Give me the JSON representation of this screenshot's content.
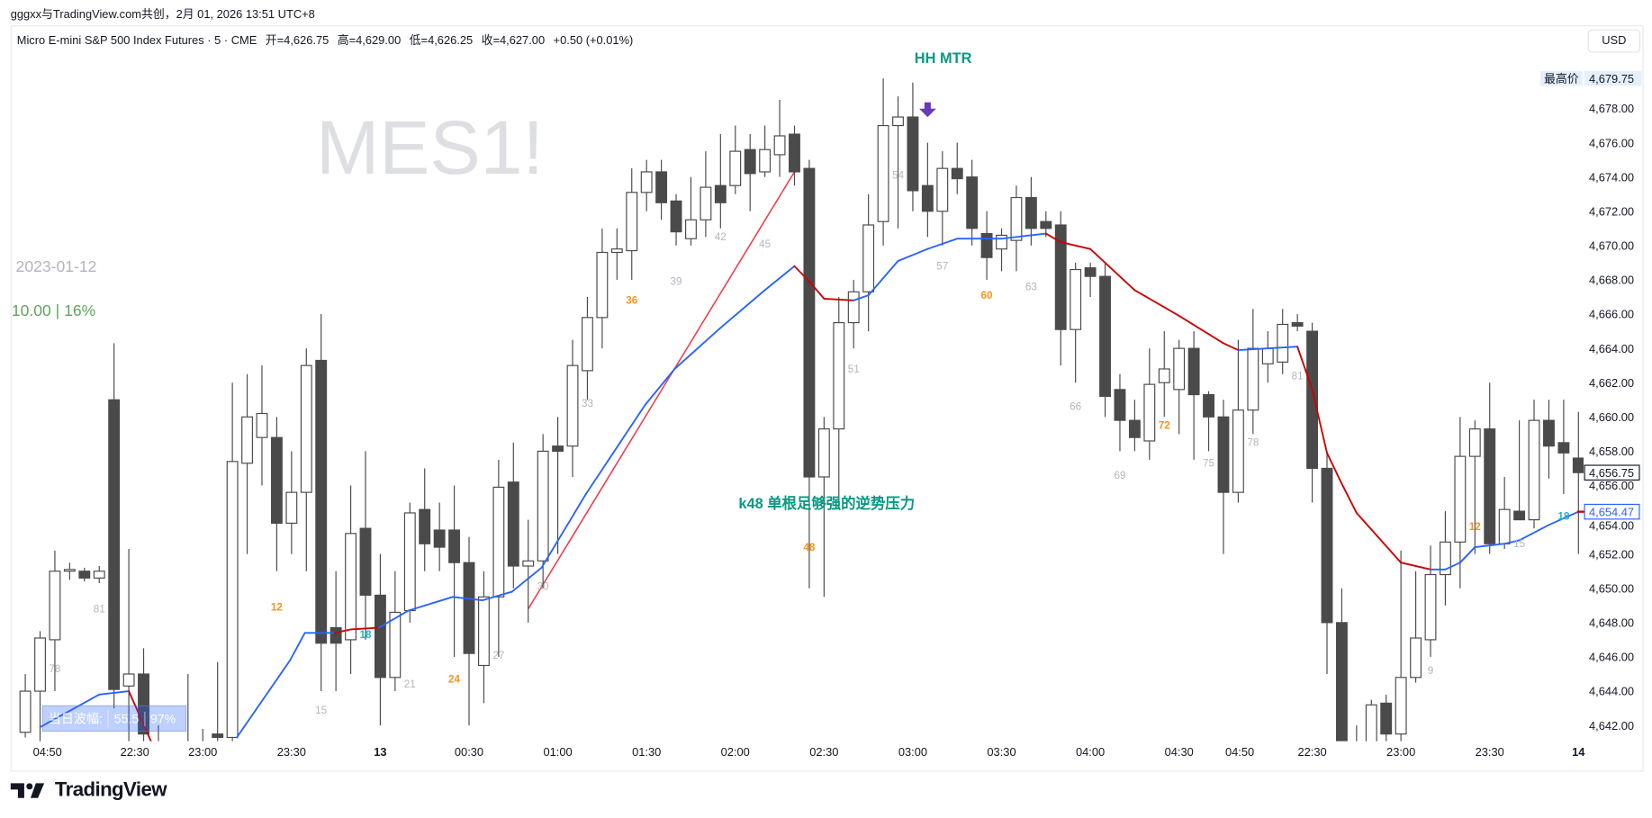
{
  "header": {
    "credit": "gggxx与TradingView.com共创，2月 01, 2026 13:51 UTC+8"
  },
  "legend": {
    "symbol": "Micro E-mini S&P 500 Index Futures · 5 · CME",
    "open": "开=4,626.75",
    "high": "高=4,629.00",
    "low": "低=4,626.25",
    "close": "收=4,627.00",
    "change": "+0.50 (+0.01%)"
  },
  "currency_button": "USD",
  "watermark": "MES1!",
  "annotations": {
    "date": "2023-01-12",
    "stat": "10.00 | 16%",
    "hh_mtr": "HH MTR",
    "k48": "k48 单根足够强的逆势压力",
    "range": {
      "label": "当日波幅:",
      "value": "55.5",
      "pct": "97%"
    }
  },
  "logo": "TradingView",
  "colors": {
    "up_body": "#ffffff",
    "down_body": "#4a4a4a",
    "ma_up": "#2962ff",
    "ma_down": "#cc0000",
    "trendline": "#f23645",
    "label_gray": "#b2b5be",
    "label_orange": "#f7931a",
    "label_teal": "#22b7c9",
    "arrow": "#673ab7"
  },
  "chart_data": {
    "type": "candlestick",
    "ylim": [
      4640.5,
      4680.5
    ],
    "price_ticks": [
      "4,678.00",
      "4,676.00",
      "4,674.00",
      "4,672.00",
      "4,670.00",
      "4,668.00",
      "4,666.00",
      "4,664.00",
      "4,662.00",
      "4,660.00",
      "4,658.00",
      "4,656.00",
      "4,654.00",
      "4,652.00",
      "4,650.00",
      "4,648.00",
      "4,646.00",
      "4,644.00",
      "4,642.00"
    ],
    "price_tick_values": [
      4678,
      4676,
      4674,
      4672,
      4670,
      4668,
      4666,
      4664,
      4662,
      4660,
      4658,
      4656,
      4654,
      4652,
      4650,
      4648,
      4646,
      4644,
      4642
    ],
    "price_tags": [
      {
        "label": "最高价",
        "text": "4,679.75",
        "value": 4679.75,
        "style": "high"
      },
      {
        "text": "4,656.75",
        "value": 4656.75,
        "style": "last"
      },
      {
        "text": "4,654.47",
        "value": 4654.47,
        "style": "ma"
      }
    ],
    "time_labels": [
      [
        "04:50",
        1.5
      ],
      [
        "22:30",
        7.4
      ],
      [
        "23:00",
        12
      ],
      [
        "23:30",
        18
      ],
      [
        "13",
        24
      ],
      [
        "00:30",
        30
      ],
      [
        "01:00",
        36
      ],
      [
        "01:30",
        42
      ],
      [
        "02:00",
        48
      ],
      [
        "02:30",
        54
      ],
      [
        "03:00",
        60
      ],
      [
        "03:30",
        66
      ],
      [
        "04:00",
        72
      ],
      [
        "04:30",
        78
      ],
      [
        "04:50",
        82.1
      ],
      [
        "22:30",
        87
      ],
      [
        "23:00",
        93
      ],
      [
        "23:30",
        99
      ],
      [
        "14",
        105
      ]
    ],
    "candles": [
      [
        0,
        4641.6,
        4645,
        4641.3,
        4644
      ],
      [
        1,
        4644,
        4647.5,
        4641,
        4647.1
      ],
      [
        2,
        4647,
        4652.2,
        4644,
        4651
      ],
      [
        3,
        4651,
        4651.5,
        4650.5,
        4651.1
      ],
      [
        4,
        4651,
        4651.2,
        4650.4,
        4650.6
      ],
      [
        5,
        4650.6,
        4651.3,
        4650.3,
        4651
      ],
      [
        6,
        4661,
        4664.3,
        4643,
        4644.1
      ],
      [
        7,
        4644.3,
        4652.3,
        4641,
        4645
      ],
      [
        8,
        4645,
        4646.5,
        4640,
        4641.5
      ],
      [
        9,
        4641,
        4642,
        4636,
        4637
      ],
      [
        10,
        4637,
        4639,
        4635,
        4638
      ],
      [
        11,
        4638,
        4645,
        4636,
        4639
      ],
      [
        12,
        4639,
        4641.8,
        4638,
        4641
      ],
      [
        13,
        4641.5,
        4645.7,
        4639,
        4641.3
      ],
      [
        14,
        4641.3,
        4662,
        4640,
        4657.4
      ],
      [
        15,
        4657.3,
        4662.5,
        4652,
        4660
      ],
      [
        16,
        4658.8,
        4663,
        4656,
        4660.2
      ],
      [
        17,
        4658.8,
        4660,
        4651,
        4653.8
      ],
      [
        18,
        4653.8,
        4658,
        4652,
        4655.6
      ],
      [
        19,
        4655.6,
        4664,
        4651,
        4663
      ],
      [
        20,
        4663.3,
        4666,
        4644,
        4646.8
      ],
      [
        21,
        4647.7,
        4651,
        4644,
        4646.8
      ],
      [
        22,
        4647,
        4656,
        4645,
        4653.2
      ],
      [
        23,
        4653.5,
        4658,
        4647,
        4649.6
      ],
      [
        24,
        4649.6,
        4652,
        4642,
        4644.8
      ],
      [
        25,
        4644.8,
        4651,
        4644,
        4648.6
      ],
      [
        26,
        4648.7,
        4655,
        4648,
        4654.4
      ],
      [
        27,
        4654.6,
        4657,
        4651,
        4652.6
      ],
      [
        28,
        4653.4,
        4655,
        4651,
        4652.4
      ],
      [
        29,
        4653.4,
        4656,
        4646,
        4651.5
      ],
      [
        30,
        4651.5,
        4653,
        4642,
        4646.2
      ],
      [
        31,
        4645.5,
        4651,
        4643.3,
        4649.5
      ],
      [
        32,
        4649.5,
        4657.5,
        4646,
        4655.9
      ],
      [
        33,
        4656.2,
        4658.5,
        4650,
        4651.3
      ],
      [
        34,
        4651.3,
        4654,
        4648,
        4651.6
      ],
      [
        35,
        4651.6,
        4659,
        4650,
        4658
      ],
      [
        36,
        4658.3,
        4660,
        4652,
        4658
      ],
      [
        37,
        4658.3,
        4664.5,
        4656.5,
        4663
      ],
      [
        38,
        4662.7,
        4667,
        4661,
        4665.8
      ],
      [
        39,
        4665.8,
        4671,
        4664,
        4669.6
      ],
      [
        40,
        4669.6,
        4671,
        4668,
        4669.8
      ],
      [
        41,
        4669.7,
        4674.5,
        4668,
        4673.1
      ],
      [
        42,
        4673.1,
        4675,
        4672,
        4674.3
      ],
      [
        43,
        4674.3,
        4675,
        4671.5,
        4672.5
      ],
      [
        44,
        4672.6,
        4673,
        4670,
        4670.8
      ],
      [
        45,
        4670.4,
        4674,
        4670,
        4671.5
      ],
      [
        46,
        4671.5,
        4675.5,
        4670.5,
        4673.4
      ],
      [
        47,
        4673.5,
        4676.5,
        4671,
        4672.5
      ],
      [
        48,
        4673.5,
        4677,
        4673,
        4675.5
      ],
      [
        49,
        4675.6,
        4676.5,
        4672,
        4674.2
      ],
      [
        50,
        4674.3,
        4677,
        4674,
        4675.6
      ],
      [
        51,
        4675.3,
        4678.5,
        4674,
        4676.4
      ],
      [
        52,
        4676.5,
        4677,
        4673.5,
        4674.3
      ],
      [
        53,
        4674.5,
        4675,
        4650,
        4656.5
      ],
      [
        54,
        4656.5,
        4660,
        4649.5,
        4659.3
      ],
      [
        55,
        4659.3,
        4667,
        4655,
        4665.5
      ],
      [
        56,
        4665.5,
        4668,
        4664,
        4667.3
      ],
      [
        57,
        4667.3,
        4673,
        4665,
        4671.2
      ],
      [
        58,
        4671.4,
        4679.75,
        4670,
        4677
      ],
      [
        59,
        4677,
        4678.7,
        4671,
        4677.5
      ],
      [
        60,
        4677.5,
        4679.5,
        4672,
        4673.2
      ],
      [
        61,
        4673.5,
        4676,
        4670.5,
        4672
      ],
      [
        62,
        4672,
        4675.5,
        4670,
        4674.5
      ],
      [
        63,
        4674.5,
        4676,
        4673,
        4673.9
      ],
      [
        64,
        4674,
        4675,
        4670,
        4671
      ],
      [
        65,
        4670.7,
        4672,
        4668,
        4669.3
      ],
      [
        66,
        4669.8,
        4671,
        4668.5,
        4670.6
      ],
      [
        67,
        4670.3,
        4673.5,
        4668.5,
        4672.8
      ],
      [
        68,
        4672.8,
        4674,
        4670,
        4671
      ],
      [
        69,
        4671.4,
        4672,
        4670.5,
        4671
      ],
      [
        70,
        4671.2,
        4672,
        4663,
        4665.1
      ],
      [
        71,
        4665.1,
        4669,
        4662,
        4668.6
      ],
      [
        72,
        4668.7,
        4669,
        4667,
        4668.2
      ],
      [
        73,
        4668.2,
        4669,
        4660,
        4661.2
      ],
      [
        74,
        4661.6,
        4662.5,
        4658,
        4659.8
      ],
      [
        75,
        4659.8,
        4661,
        4658,
        4658.8
      ],
      [
        76,
        4658.6,
        4664,
        4657.5,
        4661.9
      ],
      [
        77,
        4662,
        4665,
        4660,
        4662.8
      ],
      [
        78,
        4661.6,
        4664.5,
        4659,
        4664
      ],
      [
        79,
        4664,
        4665,
        4657.5,
        4661.3
      ],
      [
        80,
        4661.3,
        4661.5,
        4658,
        4660
      ],
      [
        81,
        4660,
        4661,
        4652,
        4655.6
      ],
      [
        82,
        4655.6,
        4664.5,
        4655,
        4660.4
      ],
      [
        83,
        4660.4,
        4666.3,
        4659,
        4664
      ],
      [
        84,
        4663.1,
        4665,
        4662,
        4664
      ],
      [
        85,
        4663.2,
        4666.3,
        4662.5,
        4665.4
      ],
      [
        86,
        4665.5,
        4666,
        4665,
        4665.3
      ],
      [
        87,
        4665,
        4665.5,
        4655,
        4657
      ],
      [
        88,
        4657,
        4658,
        4645,
        4648
      ],
      [
        89,
        4648,
        4650,
        4638,
        4640
      ],
      [
        90,
        4640,
        4642,
        4636,
        4638
      ],
      [
        91,
        4640,
        4643.5,
        4639,
        4643.2
      ],
      [
        92,
        4643.3,
        4643.8,
        4640,
        4641.5
      ],
      [
        93,
        4641.5,
        4652.2,
        4640,
        4644.8
      ],
      [
        94,
        4644.8,
        4651,
        4644.5,
        4647.1
      ],
      [
        95,
        4647,
        4652.5,
        4646,
        4650.8
      ],
      [
        96,
        4650.8,
        4654.5,
        4649,
        4652.7
      ],
      [
        97,
        4652.7,
        4660,
        4650,
        4657.7
      ],
      [
        98,
        4657.7,
        4659.8,
        4652,
        4659.3
      ],
      [
        99,
        4659.3,
        4662,
        4652,
        4652.6
      ],
      [
        100,
        4652.6,
        4656.5,
        4652.3,
        4654.6
      ],
      [
        101,
        4654.5,
        4659.8,
        4654,
        4654
      ],
      [
        102,
        4654,
        4661,
        4653.5,
        4659.8
      ],
      [
        103,
        4659.8,
        4661,
        4656.4,
        4658.3
      ],
      [
        104,
        4658.5,
        4661,
        4655.5,
        4657.9
      ],
      [
        105,
        4657.6,
        4660.3,
        4652,
        4656.75
      ]
    ],
    "moving_average": [
      [
        [
          1,
          4641.9,
          "b"
        ],
        [
          5,
          4643.8,
          "b"
        ],
        [
          7,
          4644,
          "b"
        ],
        [
          9,
          4640.1,
          "r"
        ]
      ],
      [
        [
          14.3,
          4641.3,
          "b"
        ],
        [
          17.9,
          4645.8,
          "b"
        ],
        [
          18.9,
          4647.4,
          "b"
        ],
        [
          20.9,
          4647.4,
          "b"
        ],
        [
          22,
          4647.6,
          "r"
        ],
        [
          23.9,
          4647.7,
          "r"
        ],
        [
          25.9,
          4648.7,
          "b"
        ],
        [
          28.9,
          4649.5,
          "b"
        ],
        [
          30.9,
          4649.3,
          "b"
        ],
        [
          32.9,
          4649.8,
          "b"
        ],
        [
          34.9,
          4651.2,
          "b"
        ],
        [
          37.9,
          4655.5,
          "b"
        ],
        [
          41.9,
          4660.7,
          "b"
        ],
        [
          43.9,
          4662.8,
          "b"
        ],
        [
          47,
          4665.2,
          "b"
        ],
        [
          50,
          4667.4,
          "b"
        ],
        [
          52,
          4668.8,
          "b"
        ],
        [
          53,
          4667.9,
          "r"
        ],
        [
          54,
          4666.9,
          "r"
        ],
        [
          56,
          4666.8,
          "r"
        ],
        [
          57,
          4667.1,
          "b"
        ],
        [
          59,
          4669.1,
          "b"
        ],
        [
          61,
          4669.8,
          "b"
        ],
        [
          63,
          4670.4,
          "b"
        ],
        [
          66,
          4670.4,
          "b"
        ],
        [
          69,
          4670.7,
          "b"
        ],
        [
          70,
          4670.2,
          "r"
        ],
        [
          72,
          4669.8,
          "r"
        ],
        [
          75,
          4667.4,
          "r"
        ],
        [
          78,
          4665.9,
          "r"
        ],
        [
          81,
          4664.3,
          "r"
        ],
        [
          82,
          4663.9,
          "r"
        ],
        [
          86,
          4664.1,
          "b"
        ],
        [
          87,
          4661.6,
          "r"
        ],
        [
          88,
          4657.9,
          "r"
        ],
        [
          89,
          4656.1,
          "r"
        ],
        [
          90,
          4654.4,
          "r"
        ],
        [
          93,
          4651.5,
          "r"
        ],
        [
          95,
          4651.1,
          "r"
        ],
        [
          96,
          4651.1,
          "b"
        ],
        [
          97,
          4651.5,
          "b"
        ],
        [
          98,
          4652.4,
          "b"
        ],
        [
          100,
          4652.6,
          "b"
        ],
        [
          101,
          4652.8,
          "b"
        ],
        [
          103,
          4653.7,
          "b"
        ],
        [
          105,
          4654.47,
          "b"
        ]
      ]
    ],
    "trendline": [
      [
        34,
        4648.8
      ],
      [
        52,
        4674.3
      ]
    ],
    "bar_count_labels": [
      [
        "78",
        2,
        4645.1,
        "gray"
      ],
      [
        "81",
        5,
        4648.6,
        "gray"
      ],
      [
        "12",
        17,
        4648.7,
        "orange"
      ],
      [
        "15",
        20,
        4642.7,
        "gray"
      ],
      [
        "18",
        23,
        4647.1,
        "teal"
      ],
      [
        "21",
        26,
        4644.2,
        "gray"
      ],
      [
        "24",
        29,
        4644.5,
        "orange"
      ],
      [
        "27",
        32,
        4645.9,
        "gray"
      ],
      [
        "30",
        35,
        4649.9,
        "gray"
      ],
      [
        "33",
        38,
        4660.6,
        "gray"
      ],
      [
        "36",
        41,
        4666.6,
        "orange"
      ],
      [
        "39",
        44,
        4667.7,
        "gray"
      ],
      [
        "42",
        47,
        4670.3,
        "gray"
      ],
      [
        "45",
        50,
        4669.9,
        "gray"
      ],
      [
        "48",
        53,
        4652.2,
        "orange"
      ],
      [
        "51",
        56,
        4662.6,
        "gray"
      ],
      [
        "54",
        59,
        4673.9,
        "gray"
      ],
      [
        "57",
        62,
        4668.6,
        "gray"
      ],
      [
        "60",
        65,
        4666.9,
        "orange"
      ],
      [
        "63",
        68,
        4667.4,
        "gray"
      ],
      [
        "66",
        71,
        4660.4,
        "gray"
      ],
      [
        "69",
        74,
        4656.4,
        "gray"
      ],
      [
        "72",
        77,
        4659.3,
        "orange"
      ],
      [
        "75",
        80,
        4657.1,
        "gray"
      ],
      [
        "78",
        83,
        4658.3,
        "gray"
      ],
      [
        "81",
        86,
        4662.2,
        "gray"
      ],
      [
        "9",
        95,
        4645,
        "gray"
      ],
      [
        "12",
        98,
        4653.4,
        "orange"
      ],
      [
        "15",
        101,
        4652.4,
        "gray"
      ],
      [
        "18",
        104,
        4654.0,
        "teal"
      ]
    ],
    "arrow_marker": {
      "bar": 61,
      "price": 4677.8
    }
  }
}
